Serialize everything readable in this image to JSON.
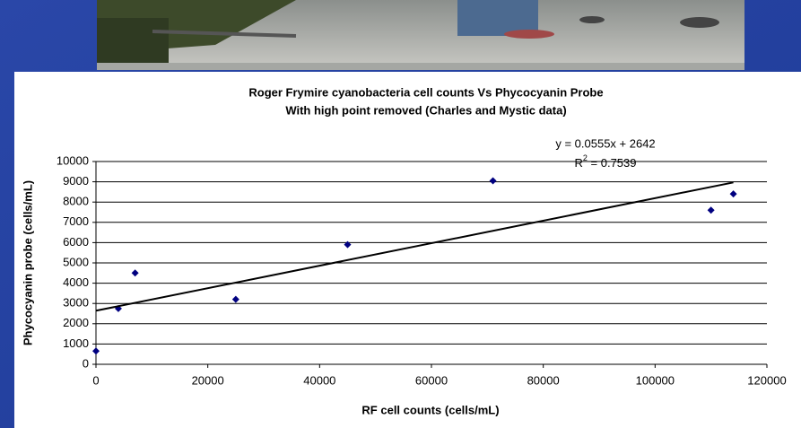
{
  "chart_data": {
    "type": "scatter",
    "title": "Roger Frymire cyanobacteria cell counts Vs Phycocyanin Probe",
    "subtitle": "With high point removed (Charles and Mystic data)",
    "x_label": "RF cell counts (cells/mL)",
    "y_label": "Phycocyanin probe (cells/mL)",
    "series": [
      {
        "name": "Phycocyanin probe",
        "color": "#000080",
        "x": [
          0,
          4000,
          7000,
          25000,
          45000,
          71000,
          110000,
          114000
        ],
        "values": [
          650,
          2750,
          4500,
          3200,
          5900,
          9050,
          7600,
          8400
        ]
      }
    ],
    "trendline": {
      "slope": 0.0555,
      "intercept": 2642,
      "color": "#000000",
      "label": "y = 0.0555x + 2642",
      "r2": 0.7539,
      "r2_parts": [
        "R",
        "2",
        " = 0.7539"
      ]
    },
    "xlim": [
      0,
      120000
    ],
    "xticks": [
      0,
      20000,
      40000,
      60000,
      80000,
      100000,
      120000
    ],
    "ylim": [
      0,
      10000
    ],
    "yticks": [
      0,
      1000,
      2000,
      3000,
      4000,
      5000,
      6000,
      7000,
      8000,
      9000,
      10000
    ],
    "grid": true
  }
}
